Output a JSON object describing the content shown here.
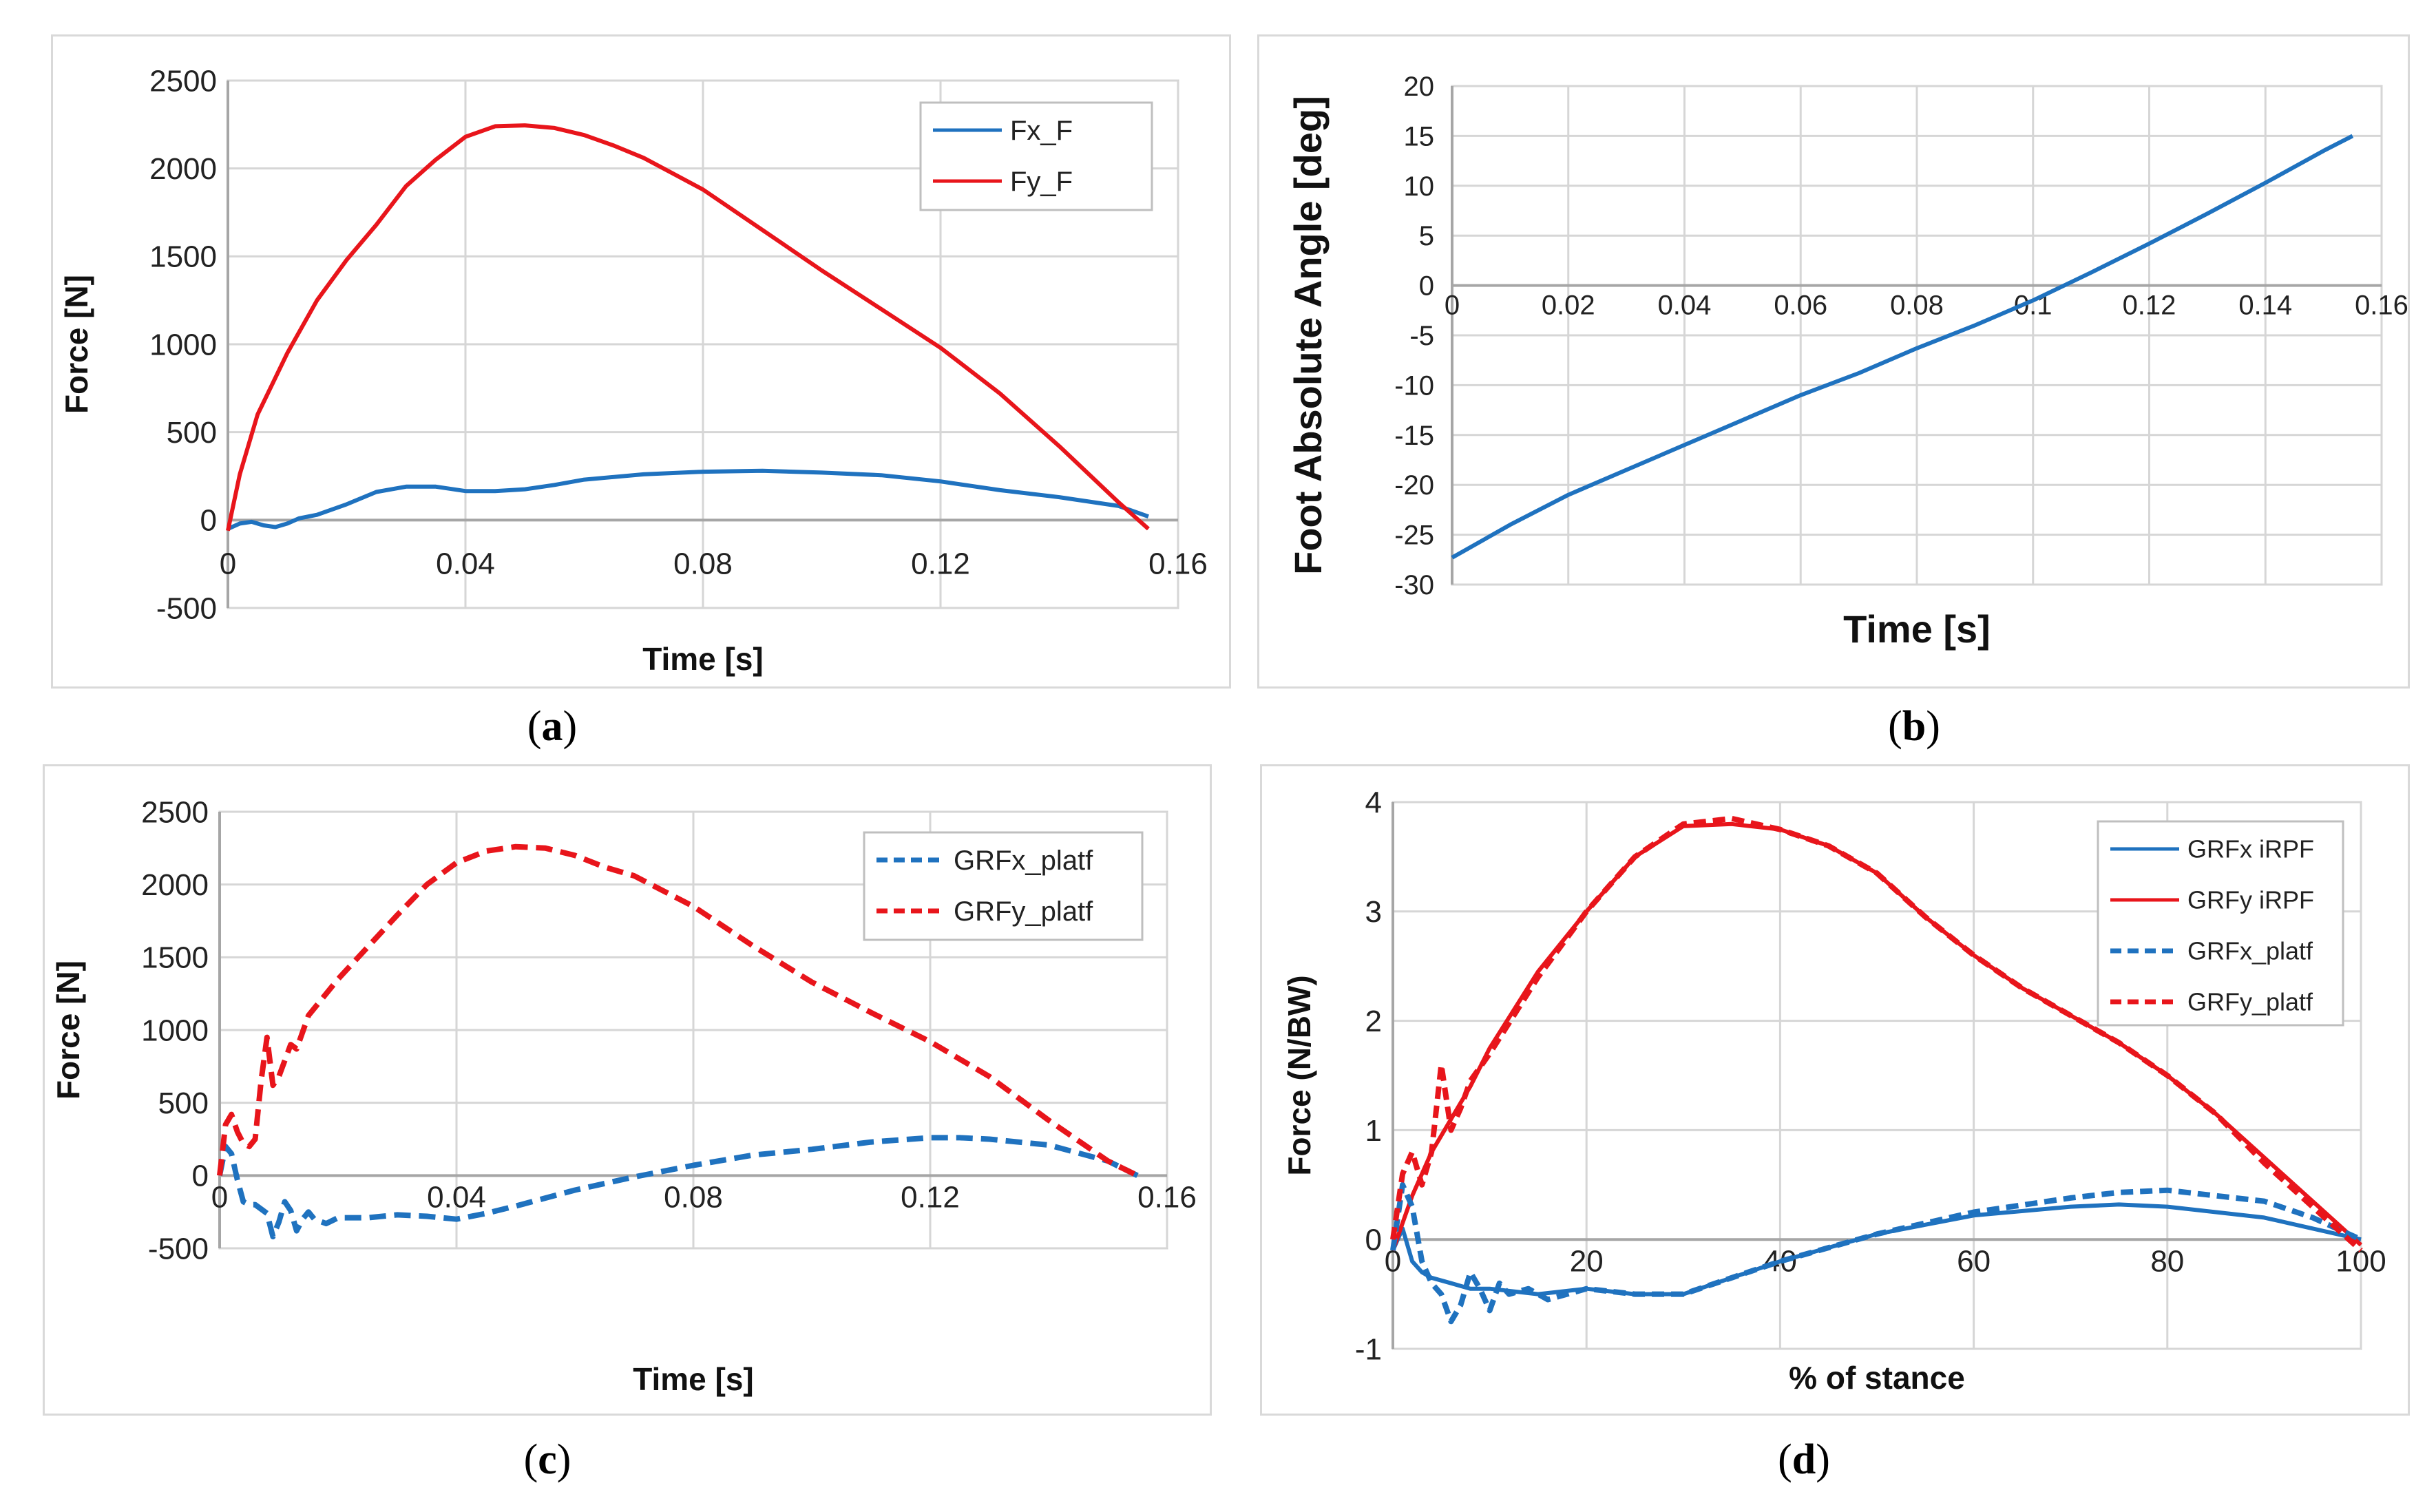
{
  "panels": [
    {
      "id": "a",
      "caption_letter": "a",
      "chart_data": {
        "type": "line",
        "title": "",
        "xlabel": "Time [s]",
        "ylabel": "Force [N]",
        "xlim": [
          0,
          0.16
        ],
        "ylim": [
          -500,
          2500
        ],
        "x_ticks": [
          0,
          0.04,
          0.08,
          0.12,
          0.16
        ],
        "x_tick_labels": [
          "0",
          "0.04",
          "0.08",
          "0.12",
          "0.16"
        ],
        "y_ticks": [
          -500,
          0,
          500,
          1000,
          1500,
          2000,
          2500
        ],
        "y_tick_labels": [
          "-500",
          "0",
          "500",
          "1000",
          "1500",
          "2000",
          "2500"
        ],
        "x_label_position": "below-axis",
        "grid": true,
        "legend_position": "top-right",
        "series": [
          {
            "name": "Fx_F",
            "color": "#1f72bf",
            "dash": "solid",
            "x": [
              0,
              0.002,
              0.004,
              0.006,
              0.008,
              0.01,
              0.012,
              0.015,
              0.02,
              0.025,
              0.03,
              0.035,
              0.04,
              0.045,
              0.05,
              0.055,
              0.06,
              0.07,
              0.08,
              0.09,
              0.1,
              0.11,
              0.12,
              0.13,
              0.14,
              0.15,
              0.155
            ],
            "y": [
              -50,
              -20,
              -10,
              -30,
              -40,
              -20,
              10,
              30,
              90,
              160,
              190,
              190,
              165,
              165,
              175,
              200,
              230,
              260,
              275,
              280,
              270,
              255,
              220,
              170,
              130,
              80,
              20
            ]
          },
          {
            "name": "Fy_F",
            "color": "#e8151b",
            "dash": "solid",
            "x": [
              0,
              0.002,
              0.005,
              0.01,
              0.015,
              0.02,
              0.025,
              0.03,
              0.035,
              0.04,
              0.045,
              0.05,
              0.055,
              0.06,
              0.065,
              0.07,
              0.08,
              0.09,
              0.1,
              0.11,
              0.12,
              0.13,
              0.14,
              0.15,
              0.155
            ],
            "y": [
              -60,
              260,
              600,
              950,
              1250,
              1480,
              1680,
              1900,
              2050,
              2180,
              2240,
              2245,
              2230,
              2190,
              2130,
              2060,
              1880,
              1650,
              1420,
              1200,
              980,
              720,
              420,
              100,
              -50
            ]
          }
        ]
      }
    },
    {
      "id": "b",
      "caption_letter": "b",
      "chart_data": {
        "type": "line",
        "title": "",
        "xlabel": "Time [s]",
        "ylabel": "Foot Absolute Angle [deg]",
        "xlim": [
          0,
          0.16
        ],
        "ylim": [
          -30,
          20
        ],
        "x_ticks": [
          0,
          0.02,
          0.04,
          0.06,
          0.08,
          0.1,
          0.12,
          0.14,
          0.16
        ],
        "x_tick_labels": [
          "0",
          "0.02",
          "0.04",
          "0.06",
          "0.08",
          "0.1",
          "0.12",
          "0.14",
          "0.16"
        ],
        "y_ticks": [
          -30,
          -25,
          -20,
          -15,
          -10,
          -5,
          0,
          5,
          10,
          15,
          20
        ],
        "y_tick_labels": [
          "-30",
          "-25",
          "-20",
          "-15",
          "-10",
          "-5",
          "0",
          "5",
          "10",
          "15",
          "20"
        ],
        "x_label_position": "at-zero",
        "grid": true,
        "legend_position": "none",
        "series": [
          {
            "color": "#1f72bf",
            "dash": "solid",
            "x": [
              0,
              0.01,
              0.02,
              0.03,
              0.04,
              0.05,
              0.06,
              0.07,
              0.08,
              0.09,
              0.1,
              0.11,
              0.12,
              0.13,
              0.14,
              0.15,
              0.155
            ],
            "y": [
              -27.3,
              -24,
              -21,
              -18.5,
              -16,
              -13.5,
              -11,
              -8.8,
              -6.3,
              -4,
              -1.5,
              1.3,
              4.2,
              7.2,
              10.3,
              13.5,
              15
            ]
          }
        ]
      }
    },
    {
      "id": "c",
      "caption_letter": "c",
      "chart_data": {
        "type": "line",
        "title": "",
        "xlabel": "Time [s]",
        "ylabel": "Force [N]",
        "xlim": [
          0,
          0.16
        ],
        "ylim": [
          -500,
          2500
        ],
        "x_ticks": [
          0,
          0.04,
          0.08,
          0.12,
          0.16
        ],
        "x_tick_labels": [
          "0",
          "0.04",
          "0.08",
          "0.12",
          "0.16"
        ],
        "y_ticks": [
          -500,
          0,
          500,
          1000,
          1500,
          2000,
          2500
        ],
        "y_tick_labels": [
          "-500",
          "0",
          "500",
          "1000",
          "1500",
          "2000",
          "2500"
        ],
        "x_label_position": "at-zero",
        "grid": true,
        "legend_position": "top-right",
        "series": [
          {
            "name": "GRFx_platf",
            "color": "#1f72bf",
            "dash": "dashed",
            "x": [
              0,
              0.001,
              0.002,
              0.003,
              0.004,
              0.005,
              0.006,
              0.008,
              0.009,
              0.01,
              0.011,
              0.012,
              0.013,
              0.014,
              0.015,
              0.016,
              0.018,
              0.02,
              0.025,
              0.03,
              0.035,
              0.04,
              0.045,
              0.05,
              0.06,
              0.07,
              0.08,
              0.09,
              0.1,
              0.11,
              0.12,
              0.125,
              0.13,
              0.14,
              0.15,
              0.155
            ],
            "y": [
              0,
              200,
              150,
              -30,
              -180,
              -200,
              -200,
              -260,
              -420,
              -320,
              -180,
              -240,
              -380,
              -300,
              -250,
              -300,
              -330,
              -290,
              -290,
              -270,
              -280,
              -300,
              -260,
              -210,
              -100,
              -10,
              70,
              140,
              180,
              230,
              260,
              260,
              250,
              210,
              100,
              0
            ]
          },
          {
            "name": "GRFy_platf",
            "color": "#e8151b",
            "dash": "dashed",
            "x": [
              0,
              0.001,
              0.002,
              0.003,
              0.004,
              0.005,
              0.006,
              0.007,
              0.008,
              0.009,
              0.01,
              0.012,
              0.013,
              0.015,
              0.02,
              0.025,
              0.03,
              0.035,
              0.04,
              0.045,
              0.05,
              0.055,
              0.06,
              0.065,
              0.07,
              0.08,
              0.09,
              0.1,
              0.11,
              0.12,
              0.13,
              0.14,
              0.15,
              0.155
            ],
            "y": [
              0,
              350,
              420,
              300,
              220,
              200,
              250,
              650,
              950,
              620,
              680,
              900,
              870,
              1100,
              1350,
              1570,
              1790,
              2000,
              2150,
              2230,
              2260,
              2250,
              2200,
              2120,
              2060,
              1850,
              1580,
              1330,
              1120,
              920,
              680,
              380,
              100,
              0
            ]
          }
        ]
      }
    },
    {
      "id": "d",
      "caption_letter": "d",
      "chart_data": {
        "type": "line",
        "title": "",
        "xlabel": "% of stance",
        "ylabel": "Force (N/BW)",
        "xlim": [
          0,
          100
        ],
        "ylim": [
          -1,
          4
        ],
        "x_ticks": [
          0,
          20,
          40,
          60,
          80,
          100
        ],
        "x_tick_labels": [
          "0",
          "20",
          "40",
          "60",
          "80",
          "100"
        ],
        "y_ticks": [
          -1,
          0,
          1,
          2,
          3,
          4
        ],
        "y_tick_labels": [
          "-1",
          "0",
          "1",
          "2",
          "3",
          "4"
        ],
        "x_label_position": "at-zero",
        "grid": true,
        "legend_position": "top-right",
        "series": [
          {
            "name": "GRFx iRPF",
            "color": "#1f72bf",
            "dash": "solid",
            "x": [
              0,
              1,
              2,
              3,
              4,
              6,
              8,
              10,
              15,
              20,
              25,
              30,
              35,
              40,
              50,
              60,
              70,
              75,
              80,
              90,
              95,
              100
            ],
            "y": [
              -0.1,
              0.1,
              -0.2,
              -0.3,
              -0.35,
              -0.4,
              -0.45,
              -0.45,
              -0.5,
              -0.45,
              -0.5,
              -0.5,
              -0.35,
              -0.2,
              0.05,
              0.22,
              0.3,
              0.32,
              0.3,
              0.2,
              0.1,
              0.0
            ]
          },
          {
            "name": "GRFy iRPF",
            "color": "#e8151b",
            "dash": "solid",
            "x": [
              0,
              2,
              4,
              6,
              8,
              10,
              15,
              20,
              25,
              30,
              35,
              40,
              45,
              50,
              55,
              60,
              65,
              70,
              75,
              80,
              85,
              90,
              95,
              100
            ],
            "y": [
              -0.1,
              0.4,
              0.8,
              1.1,
              1.4,
              1.75,
              2.45,
              3.0,
              3.5,
              3.78,
              3.8,
              3.75,
              3.6,
              3.35,
              2.95,
              2.6,
              2.3,
              2.05,
              1.8,
              1.5,
              1.15,
              0.75,
              0.35,
              -0.05
            ]
          },
          {
            "name": "GRFx_platf",
            "color": "#1f72bf",
            "dash": "dashed",
            "x": [
              0,
              1,
              2,
              3,
              4,
              5,
              6,
              7,
              8,
              9,
              10,
              11,
              12,
              14,
              16,
              20,
              25,
              30,
              35,
              40,
              50,
              60,
              70,
              75,
              80,
              90,
              95,
              100
            ],
            "y": [
              -0.1,
              0.5,
              0.3,
              -0.2,
              -0.4,
              -0.5,
              -0.75,
              -0.6,
              -0.3,
              -0.45,
              -0.65,
              -0.4,
              -0.5,
              -0.45,
              -0.55,
              -0.45,
              -0.5,
              -0.5,
              -0.35,
              -0.2,
              0.05,
              0.25,
              0.38,
              0.43,
              0.45,
              0.35,
              0.2,
              0.0
            ]
          },
          {
            "name": "GRFy_platf",
            "color": "#e8151b",
            "dash": "dashed",
            "x": [
              0,
              1,
              2,
              3,
              4,
              5,
              6,
              7,
              8,
              10,
              15,
              20,
              25,
              30,
              35,
              40,
              45,
              50,
              55,
              60,
              65,
              70,
              75,
              80,
              85,
              90,
              95,
              100
            ],
            "y": [
              0,
              0.6,
              0.8,
              0.5,
              0.8,
              1.6,
              1.0,
              1.2,
              1.45,
              1.7,
              2.4,
              3.0,
              3.5,
              3.8,
              3.85,
              3.75,
              3.6,
              3.35,
              2.95,
              2.6,
              2.3,
              2.05,
              1.8,
              1.5,
              1.15,
              0.7,
              0.3,
              -0.1
            ]
          }
        ]
      }
    }
  ]
}
